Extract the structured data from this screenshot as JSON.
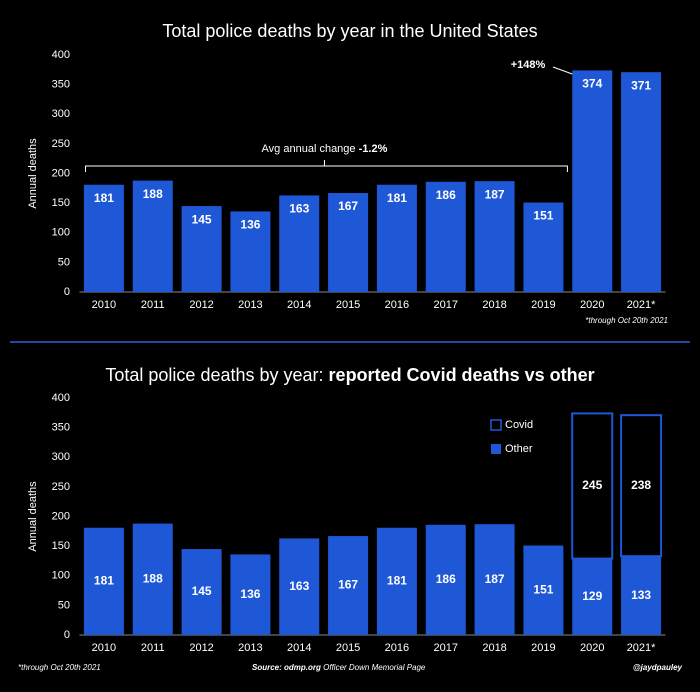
{
  "chart_data": [
    {
      "type": "bar",
      "title": "Total police deaths by year in the United States",
      "y_label": "Annual deaths",
      "categories": [
        "2010",
        "2011",
        "2012",
        "2013",
        "2014",
        "2015",
        "2016",
        "2017",
        "2018",
        "2019",
        "2020",
        "2021*"
      ],
      "values": [
        181,
        188,
        145,
        136,
        163,
        167,
        181,
        186,
        187,
        151,
        374,
        371
      ],
      "color": "#1f58d6",
      "ylim": [
        0,
        400
      ],
      "yticks": [
        0,
        50,
        100,
        150,
        200,
        250,
        300,
        350,
        400
      ],
      "bracket_label": "Avg annual change",
      "bracket_value": "-1.2%",
      "jump_label": "+148%",
      "note": "*through Oct 20th 2021"
    },
    {
      "type": "stacked_bar",
      "title": "Total police deaths by year:",
      "title_bold": "reported Covid deaths vs other",
      "y_label": "Annual deaths",
      "categories": [
        "2010",
        "2011",
        "2012",
        "2013",
        "2014",
        "2015",
        "2016",
        "2017",
        "2018",
        "2019",
        "2020",
        "2021*"
      ],
      "series": [
        {
          "name": "Other",
          "color": "#1f58d6",
          "values": [
            181,
            188,
            145,
            136,
            163,
            167,
            181,
            186,
            187,
            151,
            129,
            133
          ]
        },
        {
          "name": "Covid",
          "color": "#1f58d6",
          "outline": true,
          "values": [
            null,
            null,
            null,
            null,
            null,
            null,
            null,
            null,
            null,
            null,
            245,
            238
          ]
        }
      ],
      "ylim": [
        0,
        400
      ],
      "yticks": [
        0,
        50,
        100,
        150,
        200,
        250,
        300,
        350,
        400
      ],
      "legend": "upper right"
    }
  ],
  "footer": {
    "note": "*through Oct 20th 2021",
    "source_label": "Source: odmp.org",
    "source_text": "Officer Down Memorial Page",
    "credit": "@jaydpauley"
  }
}
